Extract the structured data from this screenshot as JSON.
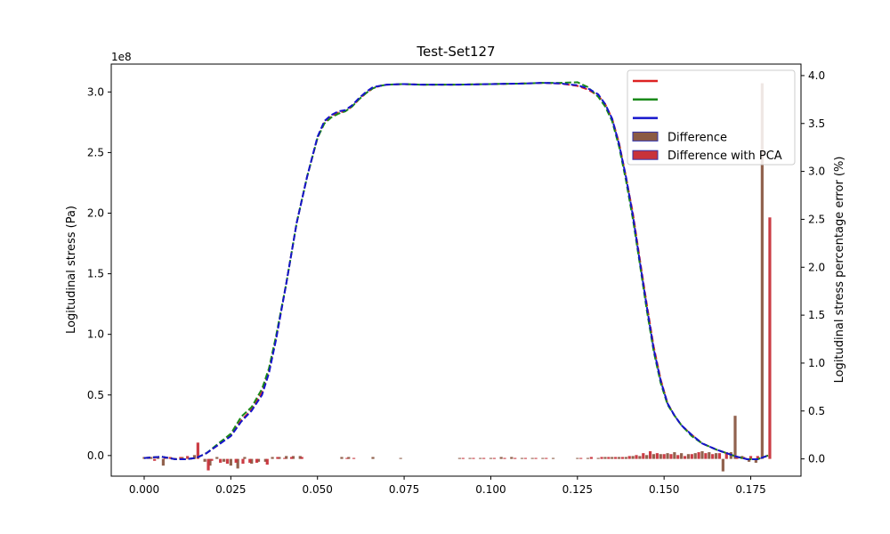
{
  "chart_data": {
    "type": "line",
    "title": "Test-Set127",
    "xlabel": "",
    "ylabel": "Logitudinal stress (Pa)",
    "y2label": "Logitudinal stress percentage error (%)",
    "y_offset_label": "1e8",
    "xlim": [
      -0.0095,
      0.1895
    ],
    "ylim": [
      -0.17,
      3.23
    ],
    "y2lim": [
      -0.18,
      4.12
    ],
    "x_ticks": [
      "0.000",
      "0.025",
      "0.050",
      "0.075",
      "0.100",
      "0.125",
      "0.150",
      "0.175"
    ],
    "x_tick_values": [
      0,
      0.025,
      0.05,
      0.075,
      0.1,
      0.125,
      0.15,
      0.175
    ],
    "y_ticks": [
      "0.0",
      "0.5",
      "1.0",
      "1.5",
      "2.0",
      "2.5",
      "3.0"
    ],
    "y_tick_values": [
      0,
      0.5,
      1.0,
      1.5,
      2.0,
      2.5,
      3.0
    ],
    "y2_ticks": [
      "0.0",
      "0.5",
      "1.0",
      "1.5",
      "2.0",
      "2.5",
      "3.0",
      "3.5",
      "4.0"
    ],
    "y2_tick_values": [
      0,
      0.5,
      1.0,
      1.5,
      2.0,
      2.5,
      3.0,
      3.5,
      4.0
    ],
    "grid": false,
    "legend_position": "top-right",
    "series": [
      {
        "color": "#dd2222",
        "style": "solid-dashed",
        "x": [
          0.0,
          0.005,
          0.009,
          0.012,
          0.015,
          0.018,
          0.021,
          0.025,
          0.028,
          0.031,
          0.034,
          0.036,
          0.038,
          0.041,
          0.044,
          0.047,
          0.05,
          0.052,
          0.054,
          0.056,
          0.058,
          0.06,
          0.062,
          0.064,
          0.066,
          0.068,
          0.07,
          0.075,
          0.08,
          0.09,
          0.1,
          0.11,
          0.115,
          0.12,
          0.125,
          0.128,
          0.131,
          0.133,
          0.135,
          0.137,
          0.139,
          0.141,
          0.143,
          0.145,
          0.147,
          0.149,
          0.151,
          0.153,
          0.155,
          0.158,
          0.161,
          0.165,
          0.168,
          0.171,
          0.174,
          0.177,
          0.18
        ],
        "y": [
          -0.02,
          -0.01,
          -0.03,
          -0.03,
          -0.02,
          0.02,
          0.08,
          0.17,
          0.29,
          0.38,
          0.52,
          0.7,
          0.96,
          1.42,
          1.92,
          2.3,
          2.62,
          2.75,
          2.8,
          2.83,
          2.84,
          2.88,
          2.94,
          2.99,
          3.03,
          3.05,
          3.06,
          3.065,
          3.06,
          3.06,
          3.065,
          3.07,
          3.075,
          3.07,
          3.05,
          3.02,
          2.97,
          2.9,
          2.78,
          2.58,
          2.3,
          2.0,
          1.62,
          1.25,
          0.9,
          0.63,
          0.43,
          0.33,
          0.25,
          0.17,
          0.1,
          0.05,
          0.02,
          -0.01,
          -0.03,
          -0.03,
          0.0
        ]
      },
      {
        "color": "#1a8a1a",
        "style": "solid-dashed",
        "x": [
          0.0,
          0.005,
          0.009,
          0.012,
          0.015,
          0.018,
          0.021,
          0.025,
          0.028,
          0.031,
          0.034,
          0.036,
          0.038,
          0.041,
          0.044,
          0.047,
          0.05,
          0.052,
          0.054,
          0.056,
          0.058,
          0.06,
          0.062,
          0.064,
          0.066,
          0.068,
          0.07,
          0.075,
          0.08,
          0.09,
          0.1,
          0.11,
          0.115,
          0.12,
          0.125,
          0.128,
          0.131,
          0.133,
          0.135,
          0.137,
          0.139,
          0.141,
          0.143,
          0.145,
          0.147,
          0.149,
          0.151,
          0.153,
          0.155,
          0.158,
          0.161,
          0.165,
          0.168,
          0.171,
          0.174,
          0.177,
          0.18
        ],
        "y": [
          -0.02,
          -0.01,
          -0.03,
          -0.03,
          -0.02,
          0.02,
          0.09,
          0.18,
          0.32,
          0.4,
          0.55,
          0.72,
          0.98,
          1.42,
          1.92,
          2.3,
          2.62,
          2.74,
          2.79,
          2.82,
          2.84,
          2.88,
          2.94,
          2.99,
          3.03,
          3.05,
          3.06,
          3.065,
          3.06,
          3.06,
          3.065,
          3.07,
          3.075,
          3.075,
          3.08,
          3.04,
          2.96,
          2.88,
          2.76,
          2.55,
          2.27,
          1.95,
          1.58,
          1.2,
          0.86,
          0.6,
          0.42,
          0.33,
          0.25,
          0.16,
          0.1,
          0.05,
          0.02,
          -0.01,
          -0.03,
          -0.03,
          0.0
        ]
      },
      {
        "color": "#1515cc",
        "style": "dashed",
        "x": [
          0.0,
          0.005,
          0.009,
          0.012,
          0.015,
          0.018,
          0.021,
          0.025,
          0.028,
          0.031,
          0.034,
          0.036,
          0.038,
          0.041,
          0.044,
          0.047,
          0.05,
          0.052,
          0.054,
          0.056,
          0.058,
          0.06,
          0.062,
          0.064,
          0.066,
          0.068,
          0.07,
          0.075,
          0.08,
          0.09,
          0.1,
          0.11,
          0.115,
          0.12,
          0.125,
          0.128,
          0.131,
          0.133,
          0.135,
          0.137,
          0.139,
          0.141,
          0.143,
          0.145,
          0.147,
          0.149,
          0.151,
          0.153,
          0.155,
          0.158,
          0.161,
          0.165,
          0.168,
          0.171,
          0.174,
          0.177,
          0.18
        ],
        "y": [
          -0.02,
          -0.01,
          -0.03,
          -0.03,
          -0.02,
          0.02,
          0.08,
          0.16,
          0.28,
          0.37,
          0.5,
          0.68,
          0.95,
          1.42,
          1.92,
          2.3,
          2.63,
          2.76,
          2.81,
          2.84,
          2.85,
          2.89,
          2.95,
          3.0,
          3.04,
          3.05,
          3.06,
          3.065,
          3.06,
          3.06,
          3.065,
          3.07,
          3.075,
          3.07,
          3.055,
          3.03,
          2.98,
          2.9,
          2.78,
          2.57,
          2.3,
          1.98,
          1.6,
          1.23,
          0.88,
          0.62,
          0.43,
          0.33,
          0.25,
          0.17,
          0.1,
          0.05,
          0.02,
          -0.01,
          -0.03,
          -0.03,
          0.0
        ]
      }
    ],
    "bars": [
      {
        "name": "Difference",
        "color": "#8b5a44",
        "edge": "#3333aa",
        "x": [
          0.0,
          0.002,
          0.004,
          0.0055,
          0.009,
          0.011,
          0.0145,
          0.0175,
          0.019,
          0.021,
          0.023,
          0.025,
          0.027,
          0.029,
          0.031,
          0.033,
          0.035,
          0.037,
          0.039,
          0.041,
          0.043,
          0.045,
          0.057,
          0.059,
          0.066,
          0.074,
          0.091,
          0.094,
          0.097,
          0.1,
          0.103,
          0.106,
          0.109,
          0.112,
          0.115,
          0.118,
          0.125,
          0.128,
          0.131,
          0.133,
          0.135,
          0.137,
          0.139,
          0.141,
          0.143,
          0.145,
          0.147,
          0.149,
          0.151,
          0.153,
          0.155,
          0.157,
          0.159,
          0.161,
          0.163,
          0.165,
          0.167,
          0.1693,
          0.1705,
          0.1725,
          0.1745,
          0.1765,
          0.1783
        ],
        "values": [
          0.02,
          0.02,
          0.02,
          -0.07,
          0.01,
          0.02,
          0.04,
          -0.03,
          -0.07,
          0.02,
          -0.03,
          -0.07,
          -0.1,
          0.02,
          -0.05,
          -0.03,
          -0.03,
          0.02,
          0.02,
          0.03,
          0.03,
          0.03,
          0.02,
          0.02,
          0.02,
          0.01,
          0.01,
          0.01,
          0.01,
          0.01,
          0.02,
          0.02,
          0.01,
          0.01,
          0.01,
          0.01,
          0.01,
          0.01,
          0.01,
          0.02,
          0.02,
          0.02,
          0.02,
          0.03,
          0.03,
          0.04,
          0.05,
          0.05,
          0.06,
          0.07,
          0.06,
          0.05,
          0.06,
          0.08,
          0.07,
          0.06,
          -0.13,
          0.07,
          0.45,
          0.03,
          -0.03,
          -0.04,
          3.92
        ]
      },
      {
        "name": "Difference with PCA",
        "color": "#c8323a",
        "edge": "#3333aa",
        "x": [
          0.0012,
          0.003,
          0.006,
          0.0075,
          0.0105,
          0.0125,
          0.0155,
          0.0185,
          0.0195,
          0.022,
          0.024,
          0.0265,
          0.0285,
          0.0305,
          0.0325,
          0.0355,
          0.0385,
          0.0405,
          0.0425,
          0.0455,
          0.0585,
          0.0605,
          0.092,
          0.095,
          0.098,
          0.101,
          0.104,
          0.107,
          0.11,
          0.113,
          0.116,
          0.126,
          0.129,
          0.132,
          0.134,
          0.136,
          0.138,
          0.14,
          0.142,
          0.144,
          0.146,
          0.148,
          0.15,
          0.152,
          0.154,
          0.156,
          0.158,
          0.16,
          0.162,
          0.164,
          0.166,
          0.168,
          0.171,
          0.173,
          0.175,
          0.177,
          0.1805
        ],
        "values": [
          0.01,
          -0.02,
          0.02,
          0.02,
          0.02,
          0.03,
          0.17,
          -0.12,
          -0.02,
          -0.04,
          -0.05,
          -0.04,
          -0.05,
          -0.04,
          -0.04,
          -0.06,
          0.02,
          0.01,
          0.02,
          0.02,
          0.01,
          0.01,
          0.01,
          0.01,
          0.01,
          0.01,
          0.01,
          0.01,
          0.01,
          0.01,
          0.01,
          0.01,
          0.02,
          0.02,
          0.02,
          0.02,
          0.02,
          0.03,
          0.04,
          0.06,
          0.08,
          0.06,
          0.05,
          0.05,
          0.04,
          0.03,
          0.05,
          0.07,
          0.06,
          0.05,
          0.06,
          0.07,
          0.03,
          0.02,
          0.03,
          0.03,
          2.52
        ]
      }
    ],
    "legend": [
      {
        "label": "",
        "kind": "line",
        "color": "#dd2222"
      },
      {
        "label": "",
        "kind": "line",
        "color": "#1a8a1a"
      },
      {
        "label": "",
        "kind": "line",
        "color": "#1515cc"
      },
      {
        "label": "Difference",
        "kind": "patch",
        "color": "#8b5a44",
        "edge": "#3333aa"
      },
      {
        "label": "Difference with PCA",
        "kind": "patch",
        "color": "#c8323a",
        "edge": "#3333aa"
      }
    ]
  }
}
